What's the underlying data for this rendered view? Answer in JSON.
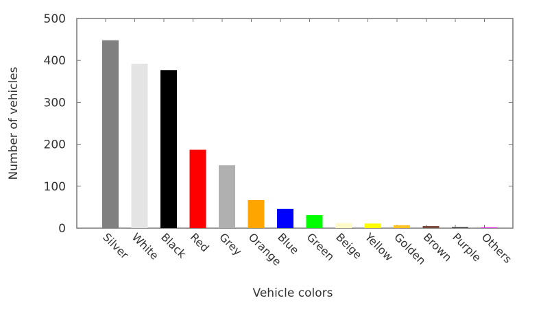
{
  "chart_data": {
    "type": "bar",
    "title": "",
    "xlabel": "Vehicle colors",
    "ylabel": "Number of vehicles",
    "ylim": [
      0,
      500
    ],
    "yticks": [
      "0",
      "100",
      "200",
      "300",
      "400",
      "500"
    ],
    "grid": false,
    "categories": [
      "Silver",
      "White",
      "Black",
      "Red",
      "Grey",
      "Orange",
      "Blue",
      "Green",
      "Beige",
      "Yellow",
      "Golden",
      "Brown",
      "Purple",
      "Others"
    ],
    "values": [
      448,
      392,
      377,
      187,
      150,
      67,
      46,
      31,
      12,
      11,
      7,
      5,
      3,
      2
    ],
    "colors": [
      "#808080",
      "#e4e4e4",
      "#000000",
      "#ff0000",
      "#b0b0b0",
      "#ffa500",
      "#0000ff",
      "#00ff00",
      "#fffac8",
      "#ffff00",
      "#ffc020",
      "#7a4a3a",
      "#555555",
      "#e020e0"
    ]
  }
}
